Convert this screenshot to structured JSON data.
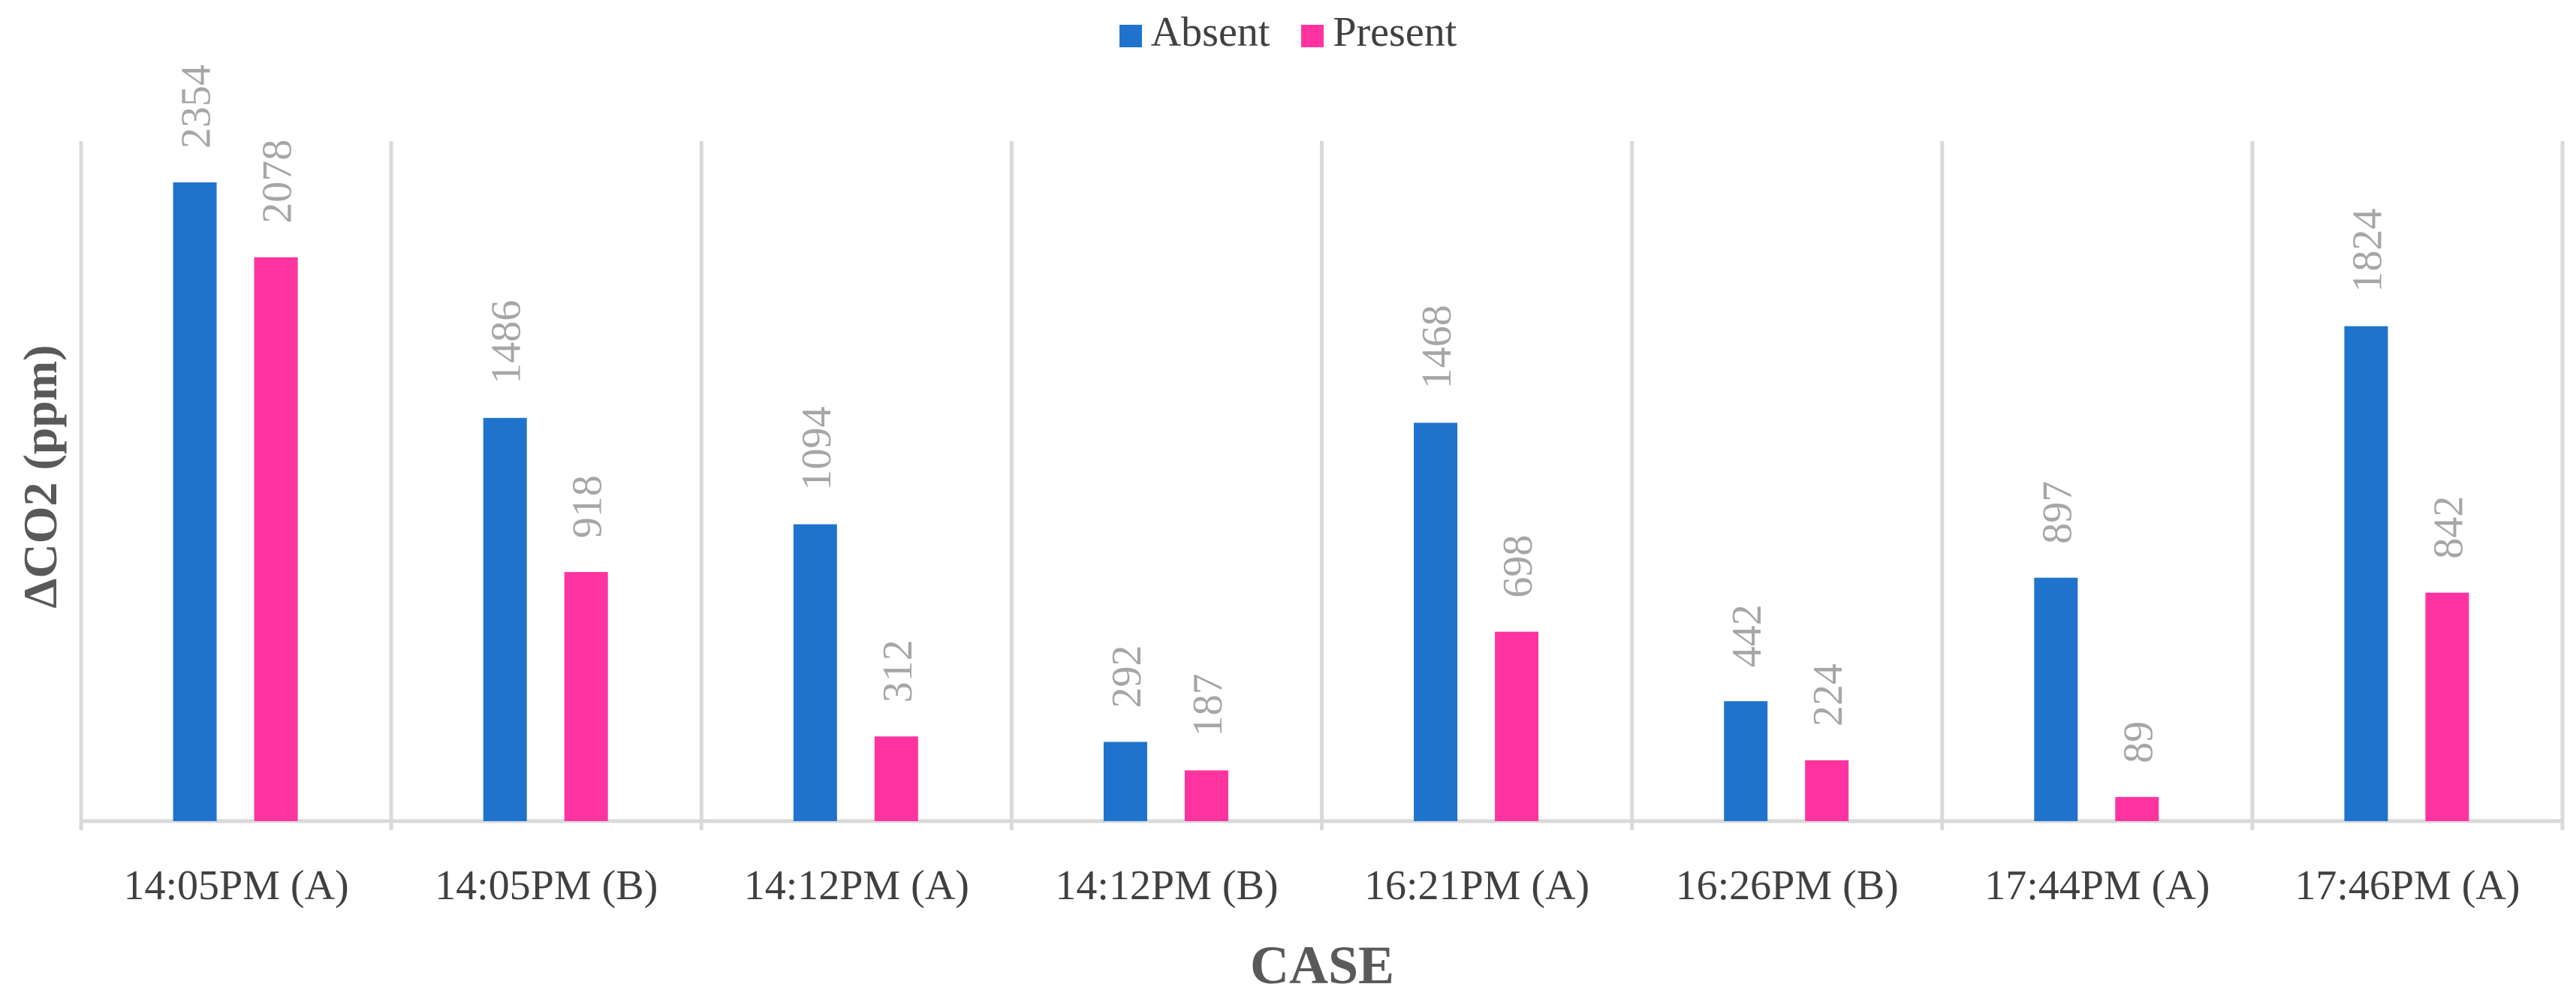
{
  "chart_data": {
    "type": "bar",
    "title": "",
    "xlabel": "CASE",
    "ylabel": "ΔCO2  (ppm)",
    "categories": [
      "14:05PM (A)",
      "14:05PM (B)",
      "14:12PM (A)",
      "14:12PM (B)",
      "16:21PM (A)",
      "16:26PM (B)",
      "17:44PM (A)",
      "17:46PM (A)"
    ],
    "series": [
      {
        "name": "Absent",
        "color": "#1F73CC",
        "values": [
          2354,
          1486,
          1094,
          292,
          1468,
          442,
          897,
          1824
        ]
      },
      {
        "name": "Present",
        "color": "#FF339F",
        "values": [
          2078,
          918,
          312,
          187,
          698,
          224,
          89,
          842
        ]
      }
    ],
    "ylim": [
      0,
      2354
    ],
    "legend_position": "top-center",
    "grid": "vertical category separators",
    "data_labels": true
  }
}
